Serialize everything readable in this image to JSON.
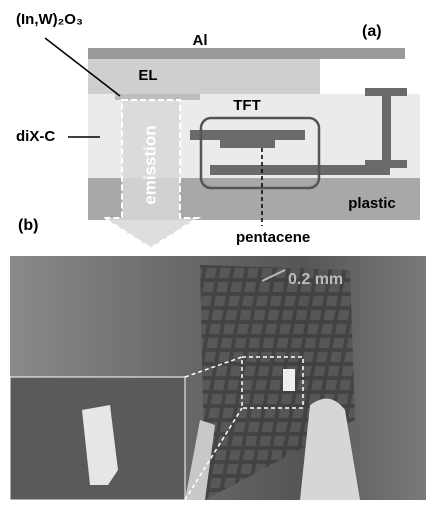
{
  "panel_a": {
    "label": "(a)",
    "layers": {
      "al": "Al",
      "el": "EL",
      "electrode": "(In,W)₂O₃",
      "dielectric": "diX-C",
      "substrate": "plastic"
    },
    "tft": "TFT",
    "semiconductor": "pentacene",
    "emission": "emisstion"
  },
  "panel_b": {
    "label": "(b)",
    "scale": "0.2 mm"
  }
}
